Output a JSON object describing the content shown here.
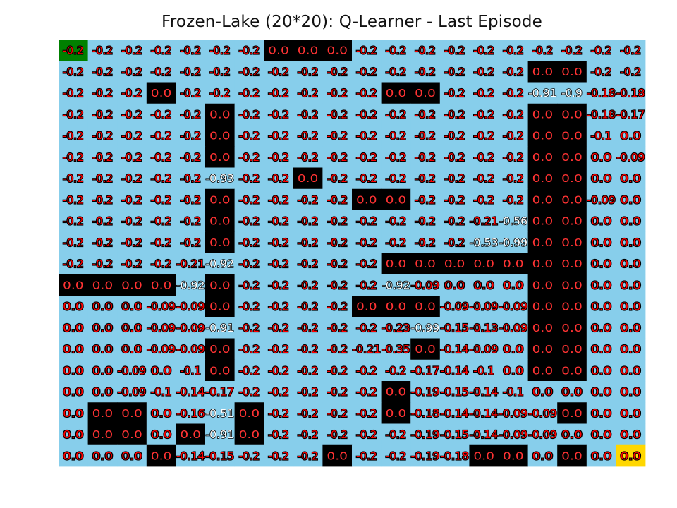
{
  "chart_data": {
    "type": "heatmap",
    "title": "Frozen-Lake (20*20): Q-Learner - Last Episode",
    "rows": 20,
    "cols": 20,
    "colors": {
      "frozen": "#87ceeb",
      "hole": "#000000",
      "start": "#008000",
      "goal": "#ffd700",
      "text": "#ff0000",
      "text_outline": "#000000",
      "text_on_hole": "#ff3333",
      "text_low_value": "#ffffff"
    },
    "start": [
      0,
      0
    ],
    "goal": [
      19,
      19
    ],
    "cell_types": [
      "SFFFFFFHHHFFFFFFFFFF",
      "FFFFFFFFFFFFFFFFHHFF",
      "FFFHFFFFFFFHHFFFFFFF",
      "FFFFFHFFFFFFFFFFHHFF",
      "FFFFFHFFFFFFFFFFHHFF",
      "FFFFFHFFFFFFFFFFHHFF",
      "FFFFFFFFHFFFFFFFHHFF",
      "FFFFFHFFFFHHFFFFHHFF",
      "FFFFFHFFFFFFFFFFHHFF",
      "FFFFFHFFFFFFFFFFHHFF",
      "FFFFFFFFFFFHHHHHHHFF",
      "HHHHFHFFFFFFFFFFHHFF",
      "FFFFFHFFFFHHHFFFHHFF",
      "FFFFFFFFFFFFFFFFHHFF",
      "FFFFFHFFFFFFHFFFHHFF",
      "FFFFFHFFFFFFFFFFHHFF",
      "FFFFFFFFFFFHFFFFFFFF",
      "FHHFFFHFFFFHFFFFFHFF",
      "FHHFHFHFFFFFFFFFFFFF",
      "FFFHFFFFFHFFFFHHFHFG"
    ],
    "values": [
      [
        "-0.2",
        "-0.2",
        "-0.2",
        "-0.2",
        "-0.2",
        "-0.2",
        "-0.2",
        "0.0",
        "0.0",
        "0.0",
        "-0.2",
        "-0.2",
        "-0.2",
        "-0.2",
        "-0.2",
        "-0.2",
        "-0.2",
        "-0.2",
        "-0.2",
        "-0.2"
      ],
      [
        "-0.2",
        "-0.2",
        "-0.2",
        "-0.2",
        "-0.2",
        "-0.2",
        "-0.2",
        "-0.2",
        "-0.2",
        "-0.2",
        "-0.2",
        "-0.2",
        "-0.2",
        "-0.2",
        "-0.2",
        "-0.2",
        "0.0",
        "0.0",
        "-0.2",
        "-0.2"
      ],
      [
        "-0.2",
        "-0.2",
        "-0.2",
        "0.0",
        "-0.2",
        "-0.2",
        "-0.2",
        "-0.2",
        "-0.2",
        "-0.2",
        "-0.2",
        "0.0",
        "0.0",
        "-0.2",
        "-0.2",
        "-0.2",
        "-0.91",
        "-0.9",
        "-0.18",
        "-0.18"
      ],
      [
        "-0.2",
        "-0.2",
        "-0.2",
        "-0.2",
        "-0.2",
        "0.0",
        "-0.2",
        "-0.2",
        "-0.2",
        "-0.2",
        "-0.2",
        "-0.2",
        "-0.2",
        "-0.2",
        "-0.2",
        "-0.2",
        "0.0",
        "0.0",
        "-0.18",
        "-0.17"
      ],
      [
        "-0.2",
        "-0.2",
        "-0.2",
        "-0.2",
        "-0.2",
        "0.0",
        "-0.2",
        "-0.2",
        "-0.2",
        "-0.2",
        "-0.2",
        "-0.2",
        "-0.2",
        "-0.2",
        "-0.2",
        "-0.2",
        "0.0",
        "0.0",
        "-0.1",
        "0.0"
      ],
      [
        "-0.2",
        "-0.2",
        "-0.2",
        "-0.2",
        "-0.2",
        "0.0",
        "-0.2",
        "-0.2",
        "-0.2",
        "-0.2",
        "-0.2",
        "-0.2",
        "-0.2",
        "-0.2",
        "-0.2",
        "-0.2",
        "0.0",
        "0.0",
        "0.0",
        "-0.09"
      ],
      [
        "-0.2",
        "-0.2",
        "-0.2",
        "-0.2",
        "-0.2",
        "-0.93",
        "-0.2",
        "-0.2",
        "0.0",
        "-0.2",
        "-0.2",
        "-0.2",
        "-0.2",
        "-0.2",
        "-0.2",
        "-0.2",
        "0.0",
        "0.0",
        "0.0",
        "0.0"
      ],
      [
        "-0.2",
        "-0.2",
        "-0.2",
        "-0.2",
        "-0.2",
        "0.0",
        "-0.2",
        "-0.2",
        "-0.2",
        "-0.2",
        "0.0",
        "0.0",
        "-0.2",
        "-0.2",
        "-0.2",
        "-0.2",
        "0.0",
        "0.0",
        "-0.09",
        "0.0"
      ],
      [
        "-0.2",
        "-0.2",
        "-0.2",
        "-0.2",
        "-0.2",
        "0.0",
        "-0.2",
        "-0.2",
        "-0.2",
        "-0.2",
        "-0.2",
        "-0.2",
        "-0.2",
        "-0.2",
        "-0.21",
        "-0.56",
        "0.0",
        "0.0",
        "0.0",
        "0.0"
      ],
      [
        "-0.2",
        "-0.2",
        "-0.2",
        "-0.2",
        "-0.2",
        "0.0",
        "-0.2",
        "-0.2",
        "-0.2",
        "-0.2",
        "-0.2",
        "-0.2",
        "-0.2",
        "-0.2",
        "-0.53",
        "-0.99",
        "0.0",
        "0.0",
        "0.0",
        "0.0"
      ],
      [
        "-0.2",
        "-0.2",
        "-0.2",
        "-0.2",
        "-0.21",
        "-0.92",
        "-0.2",
        "-0.2",
        "-0.2",
        "-0.2",
        "-0.2",
        "0.0",
        "0.0",
        "0.0",
        "0.0",
        "0.0",
        "0.0",
        "0.0",
        "0.0",
        "0.0"
      ],
      [
        "0.0",
        "0.0",
        "0.0",
        "0.0",
        "-0.92",
        "0.0",
        "-0.2",
        "-0.2",
        "-0.2",
        "-0.2",
        "-0.2",
        "-0.92",
        "-0.09",
        "0.0",
        "0.0",
        "0.0",
        "0.0",
        "0.0",
        "0.0",
        "0.0"
      ],
      [
        "0.0",
        "0.0",
        "0.0",
        "-0.09",
        "-0.09",
        "0.0",
        "-0.2",
        "-0.2",
        "-0.2",
        "-0.2",
        "0.0",
        "0.0",
        "0.0",
        "-0.09",
        "-0.09",
        "-0.09",
        "0.0",
        "0.0",
        "0.0",
        "0.0"
      ],
      [
        "0.0",
        "0.0",
        "0.0",
        "-0.09",
        "-0.09",
        "-0.91",
        "-0.2",
        "-0.2",
        "-0.2",
        "-0.2",
        "-0.2",
        "-0.23",
        "-0.99",
        "-0.15",
        "-0.13",
        "-0.09",
        "0.0",
        "0.0",
        "0.0",
        "0.0"
      ],
      [
        "0.0",
        "0.0",
        "0.0",
        "-0.09",
        "-0.09",
        "0.0",
        "-0.2",
        "-0.2",
        "-0.2",
        "-0.2",
        "-0.21",
        "-0.35",
        "0.0",
        "-0.14",
        "-0.09",
        "0.0",
        "0.0",
        "0.0",
        "0.0",
        "0.0"
      ],
      [
        "0.0",
        "0.0",
        "-0.09",
        "0.0",
        "-0.1",
        "0.0",
        "-0.2",
        "-0.2",
        "-0.2",
        "-0.2",
        "-0.2",
        "-0.2",
        "-0.17",
        "-0.14",
        "-0.1",
        "0.0",
        "0.0",
        "0.0",
        "0.0",
        "0.0"
      ],
      [
        "0.0",
        "0.0",
        "-0.09",
        "-0.1",
        "-0.14",
        "-0.17",
        "-0.2",
        "-0.2",
        "-0.2",
        "-0.2",
        "-0.2",
        "0.0",
        "-0.19",
        "-0.15",
        "-0.14",
        "-0.1",
        "0.0",
        "0.0",
        "0.0",
        "0.0"
      ],
      [
        "0.0",
        "0.0",
        "0.0",
        "0.0",
        "-0.16",
        "-0.51",
        "0.0",
        "-0.2",
        "-0.2",
        "-0.2",
        "-0.2",
        "0.0",
        "-0.18",
        "-0.14",
        "-0.14",
        "-0.09",
        "-0.09",
        "0.0",
        "0.0",
        "0.0"
      ],
      [
        "0.0",
        "0.0",
        "0.0",
        "0.0",
        "0.0",
        "-0.91",
        "0.0",
        "-0.2",
        "-0.2",
        "-0.2",
        "-0.2",
        "-0.2",
        "-0.19",
        "-0.15",
        "-0.14",
        "-0.09",
        "-0.09",
        "0.0",
        "0.0",
        "0.0"
      ],
      [
        "0.0",
        "0.0",
        "0.0",
        "0.0",
        "-0.14",
        "-0.15",
        "-0.2",
        "-0.2",
        "-0.2",
        "0.0",
        "-0.2",
        "-0.2",
        "-0.19",
        "-0.18",
        "0.0",
        "0.0",
        "0.0",
        "0.0",
        "0.0",
        "0.0"
      ]
    ],
    "grid": false,
    "xlabel": "",
    "ylabel": ""
  }
}
